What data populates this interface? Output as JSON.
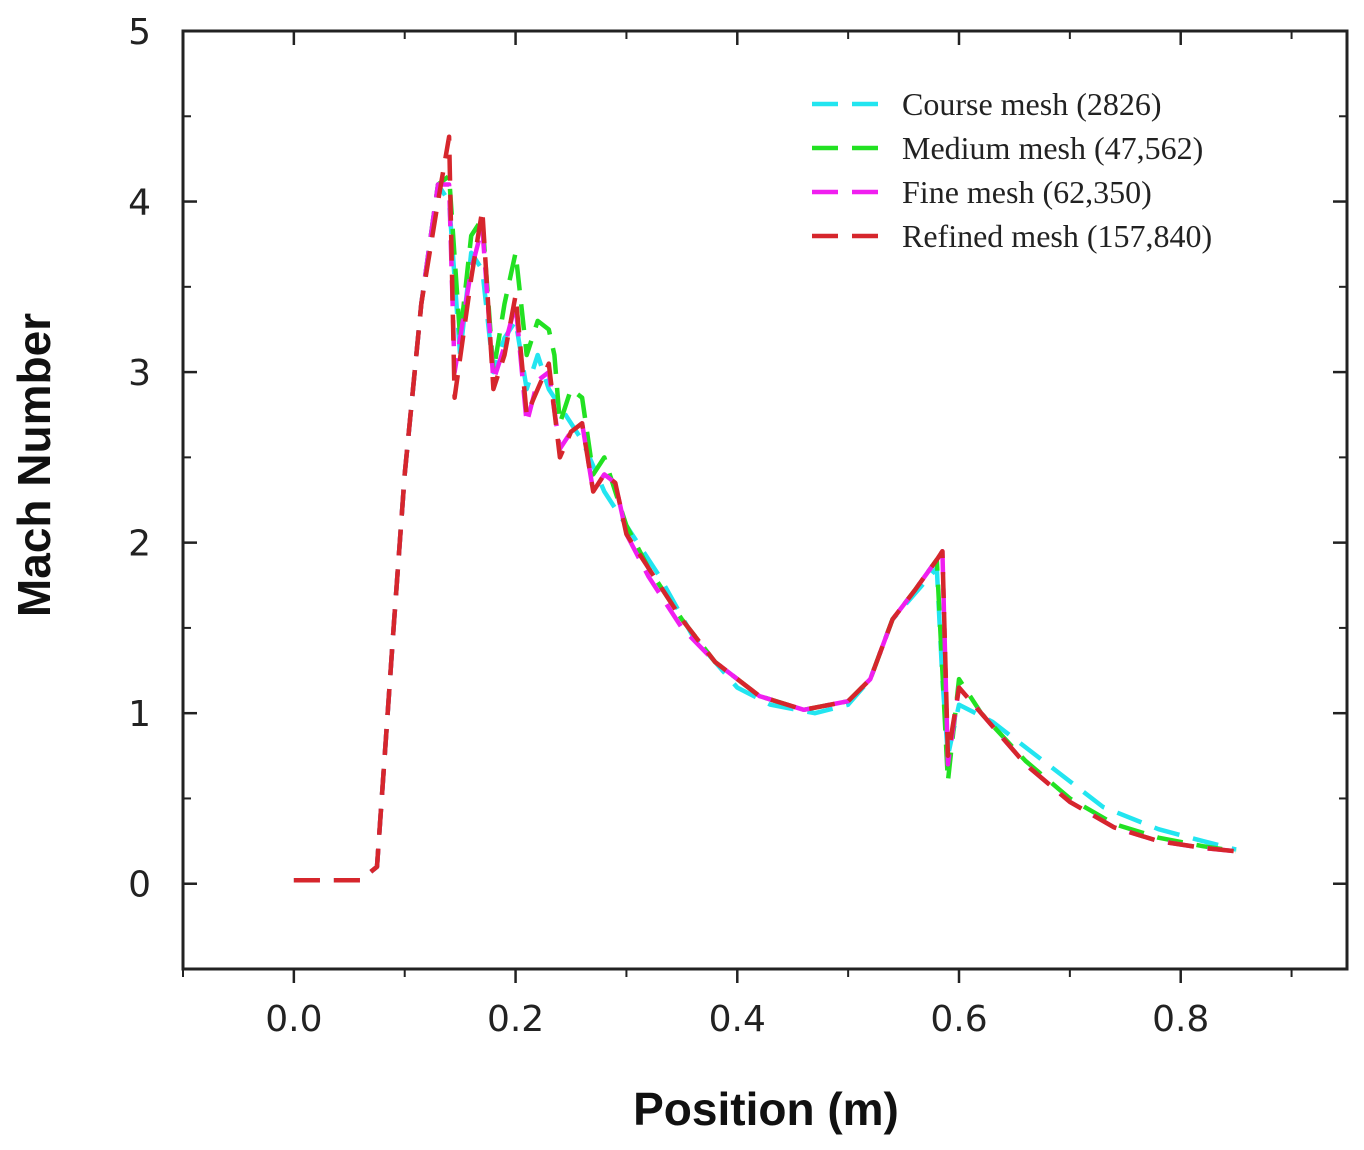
{
  "chart_data": {
    "type": "line",
    "title": "",
    "xlabel": "Position (m)",
    "ylabel": "Mach Number",
    "xlim": [
      -0.1,
      0.95
    ],
    "ylim": [
      -0.5,
      5
    ],
    "xticks": [
      0.0,
      0.2,
      0.4,
      0.6,
      0.8
    ],
    "xtick_labels": [
      "0.0",
      "0.2",
      "0.4",
      "0.6",
      "0.8"
    ],
    "yticks": [
      0,
      1,
      2,
      3,
      4,
      5
    ],
    "ytick_labels": [
      "0",
      "1",
      "2",
      "3",
      "4",
      "5"
    ],
    "grid": false,
    "legend_position": "top-right",
    "series": [
      {
        "name": "Course mesh (2826)",
        "color": "#22e5f0",
        "x": [
          0.0,
          0.06,
          0.075,
          0.09,
          0.1,
          0.115,
          0.13,
          0.14,
          0.15,
          0.16,
          0.17,
          0.18,
          0.19,
          0.2,
          0.21,
          0.22,
          0.23,
          0.24,
          0.26,
          0.28,
          0.3,
          0.33,
          0.36,
          0.4,
          0.43,
          0.47,
          0.5,
          0.52,
          0.54,
          0.56,
          0.58,
          0.585,
          0.59,
          0.6,
          0.63,
          0.68,
          0.73,
          0.78,
          0.82,
          0.85
        ],
        "y": [
          0.02,
          0.02,
          0.1,
          1.5,
          2.4,
          3.4,
          4.1,
          4.0,
          3.1,
          3.7,
          3.6,
          3.0,
          3.2,
          3.3,
          2.9,
          3.1,
          2.9,
          2.8,
          2.6,
          2.3,
          2.1,
          1.8,
          1.45,
          1.15,
          1.05,
          1.0,
          1.05,
          1.2,
          1.55,
          1.7,
          1.85,
          1.2,
          0.75,
          1.05,
          0.95,
          0.7,
          0.45,
          0.32,
          0.25,
          0.2
        ]
      },
      {
        "name": "Medium mesh (47,562)",
        "color": "#22e122",
        "x": [
          0.0,
          0.06,
          0.075,
          0.09,
          0.1,
          0.115,
          0.13,
          0.14,
          0.15,
          0.16,
          0.17,
          0.18,
          0.19,
          0.2,
          0.21,
          0.22,
          0.23,
          0.235,
          0.24,
          0.25,
          0.26,
          0.27,
          0.28,
          0.29,
          0.3,
          0.32,
          0.35,
          0.38,
          0.42,
          0.46,
          0.5,
          0.52,
          0.54,
          0.56,
          0.58,
          0.59,
          0.6,
          0.62,
          0.66,
          0.7,
          0.74,
          0.78,
          0.82,
          0.85
        ],
        "y": [
          0.02,
          0.02,
          0.1,
          1.5,
          2.4,
          3.4,
          4.1,
          4.15,
          3.2,
          3.8,
          3.9,
          3.0,
          3.4,
          3.7,
          3.1,
          3.3,
          3.25,
          3.1,
          2.7,
          2.9,
          2.85,
          2.4,
          2.5,
          2.3,
          2.1,
          1.85,
          1.55,
          1.3,
          1.1,
          1.02,
          1.07,
          1.2,
          1.55,
          1.72,
          1.9,
          0.6,
          1.2,
          1.0,
          0.72,
          0.5,
          0.35,
          0.27,
          0.22,
          0.19
        ]
      },
      {
        "name": "Fine mesh (62,350)",
        "color": "#f01ef0",
        "x": [
          0.0,
          0.06,
          0.075,
          0.09,
          0.1,
          0.115,
          0.13,
          0.14,
          0.145,
          0.16,
          0.17,
          0.18,
          0.19,
          0.2,
          0.21,
          0.22,
          0.23,
          0.24,
          0.25,
          0.26,
          0.27,
          0.28,
          0.29,
          0.3,
          0.32,
          0.35,
          0.38,
          0.42,
          0.46,
          0.5,
          0.52,
          0.54,
          0.56,
          0.58,
          0.585,
          0.59,
          0.6,
          0.62,
          0.66,
          0.7,
          0.74,
          0.78,
          0.82,
          0.85
        ],
        "y": [
          0.02,
          0.02,
          0.1,
          1.5,
          2.4,
          3.4,
          4.1,
          4.1,
          3.0,
          3.6,
          3.85,
          2.95,
          3.15,
          3.4,
          2.7,
          2.95,
          3.0,
          2.55,
          2.65,
          2.7,
          2.3,
          2.4,
          2.35,
          2.05,
          1.8,
          1.5,
          1.3,
          1.1,
          1.02,
          1.07,
          1.2,
          1.55,
          1.72,
          1.9,
          1.95,
          0.7,
          1.15,
          1.0,
          0.7,
          0.48,
          0.33,
          0.25,
          0.21,
          0.19
        ]
      },
      {
        "name": "Refined mesh (157,840)",
        "color": "#d6262c",
        "x": [
          0.0,
          0.06,
          0.075,
          0.09,
          0.1,
          0.115,
          0.13,
          0.14,
          0.145,
          0.16,
          0.17,
          0.18,
          0.19,
          0.2,
          0.21,
          0.22,
          0.23,
          0.24,
          0.25,
          0.26,
          0.27,
          0.28,
          0.29,
          0.3,
          0.32,
          0.35,
          0.38,
          0.42,
          0.46,
          0.5,
          0.52,
          0.54,
          0.56,
          0.58,
          0.585,
          0.59,
          0.6,
          0.62,
          0.66,
          0.7,
          0.74,
          0.78,
          0.82,
          0.85
        ],
        "y": [
          0.02,
          0.02,
          0.1,
          1.5,
          2.4,
          3.4,
          4.0,
          4.38,
          2.85,
          3.55,
          3.95,
          2.9,
          3.1,
          3.45,
          2.75,
          2.9,
          3.05,
          2.5,
          2.65,
          2.7,
          2.3,
          2.4,
          2.35,
          2.05,
          1.85,
          1.55,
          1.3,
          1.1,
          1.02,
          1.07,
          1.2,
          1.55,
          1.72,
          1.9,
          1.95,
          0.75,
          1.15,
          1.0,
          0.7,
          0.48,
          0.33,
          0.25,
          0.21,
          0.19
        ]
      }
    ]
  }
}
